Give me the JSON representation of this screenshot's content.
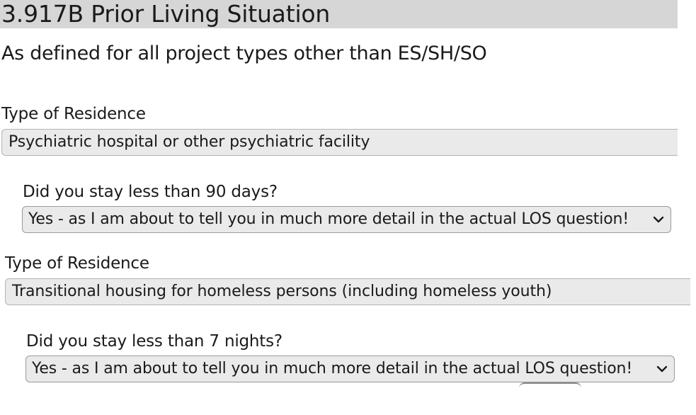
{
  "section": {
    "title": "3.917B Prior Living Situation",
    "subtitle": "As defined for all project types other than ES/SH/SO"
  },
  "entries": [
    {
      "residence_label": "Type of Residence",
      "residence_value": "Psychiatric hospital or other psychiatric facility",
      "question_label": "Did you stay less than 90 days?",
      "answer_selected": "Yes - as I am about to tell you in much more detail in the actual LOS question!"
    },
    {
      "residence_label": "Type of Residence",
      "residence_value": "Transitional housing for homeless persons (including homeless youth)",
      "question_label": "Did you stay less than 7 nights?",
      "answer_selected": "Yes - as I am about to tell you in much more detail in the actual LOS question!"
    }
  ],
  "icons": {
    "dropdown": "chevron-down-icon"
  },
  "colors": {
    "header_bg": "#d6d6d6",
    "field_bg": "#eaeaea"
  }
}
